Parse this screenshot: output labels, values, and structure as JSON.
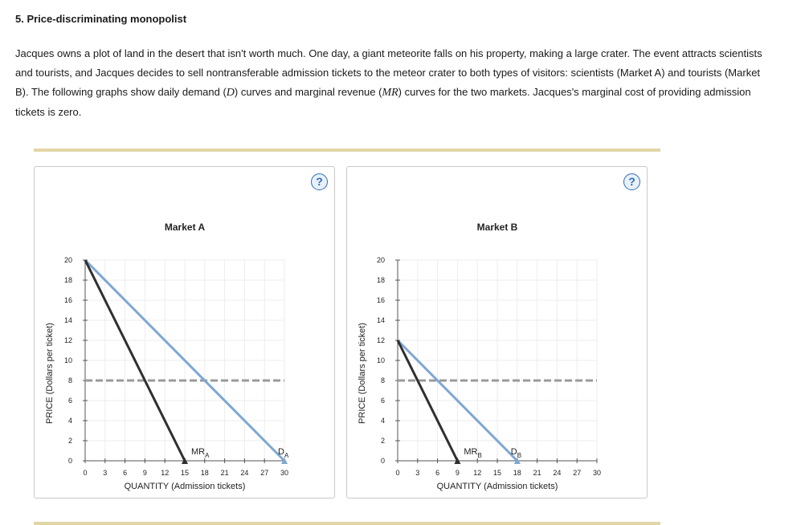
{
  "question": {
    "title": "5. Price-discriminating monopolist",
    "intro": {
      "p1": "Jacques owns a plot of land in the desert that isn't worth much. One day, a giant meteorite falls on his property, making a large crater. The event attracts scientists and tourists, and Jacques decides to sell nontransferable admission tickets to the meteor crater to both types of visitors: scientists (Market A) and tourists (Market B). The following graphs show daily demand (",
      "d_var": "D",
      "p2": ") curves and marginal revenue (",
      "mr_var": "MR",
      "p3": ") curves for the two markets. Jacques's marginal cost of providing admission tickets is zero."
    }
  },
  "help_label": "?",
  "colors": {
    "demand": "#7ea7d3",
    "mr": "#2f2f2f",
    "dashed": "#9a9a9a",
    "rule": "#e3d6a6",
    "help": "#2f6eb5"
  },
  "chart_data": [
    {
      "type": "line",
      "title": "Market A",
      "xlabel": "QUANTITY (Admission tickets)",
      "ylabel": "PRICE (Dollars per ticket)",
      "xlim": [
        0,
        30
      ],
      "ylim": [
        0,
        20
      ],
      "xticks": [
        0,
        3,
        6,
        9,
        12,
        15,
        18,
        21,
        24,
        27,
        30
      ],
      "yticks": [
        0,
        2,
        4,
        6,
        8,
        10,
        12,
        14,
        16,
        18,
        20
      ],
      "grid": true,
      "series": [
        {
          "role": "demand",
          "name": "D",
          "sub": "A",
          "x": [
            0,
            30
          ],
          "y": [
            20,
            0
          ]
        },
        {
          "role": "mr",
          "name": "MR",
          "sub": "A",
          "x": [
            0,
            15
          ],
          "y": [
            20,
            0
          ]
        }
      ],
      "hline": {
        "y": 8,
        "style": "dashed"
      }
    },
    {
      "type": "line",
      "title": "Market B",
      "xlabel": "QUANTITY (Admission tickets)",
      "ylabel": "PRICE (Dollars per ticket)",
      "xlim": [
        0,
        30
      ],
      "ylim": [
        0,
        20
      ],
      "xticks": [
        0,
        3,
        6,
        9,
        12,
        15,
        18,
        21,
        24,
        27,
        30
      ],
      "yticks": [
        0,
        2,
        4,
        6,
        8,
        10,
        12,
        14,
        16,
        18,
        20
      ],
      "grid": true,
      "series": [
        {
          "role": "demand",
          "name": "D",
          "sub": "B",
          "x": [
            0,
            18
          ],
          "y": [
            12,
            0
          ]
        },
        {
          "role": "mr",
          "name": "MR",
          "sub": "B",
          "x": [
            0,
            9
          ],
          "y": [
            12,
            0
          ]
        }
      ],
      "hline": {
        "y": 8,
        "style": "dashed"
      }
    }
  ]
}
